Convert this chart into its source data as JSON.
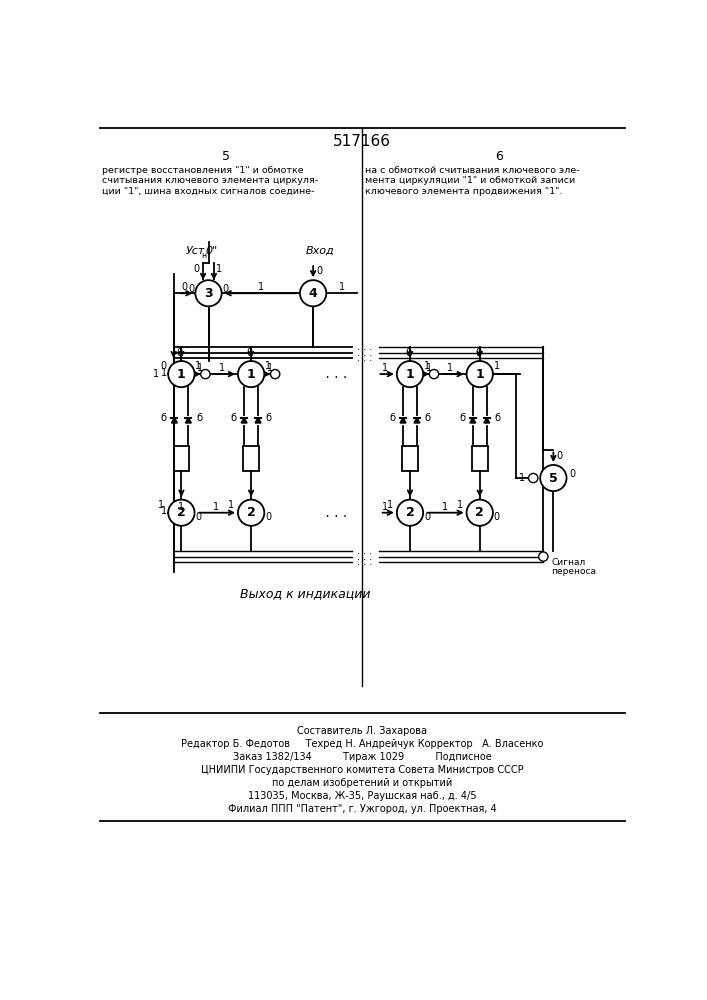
{
  "title": "517166",
  "page_left": "5",
  "page_right": "6",
  "text_left": [
    "регистре восстановления \"1\" и обмотке",
    "считывания ключевого элемента циркуля-",
    "ции \"1\", шина входных сигналов соедине-"
  ],
  "text_right": [
    "на с обмоткой считывания ключевого эле-",
    "мента циркуляции \"1\" и обмоткой записи",
    "ключевого элемента продвижения \"1\"."
  ],
  "footer_lines": [
    "Составитель Л. Захарова",
    "Редактор Б. Федотов     Техред Н. Андрейчук Корректор   А. Власенко",
    "Заказ 1382/134          Тираж 1029          Подписное",
    "ЦНИИПИ Государственного комитета Совета Министров СССР",
    "по делам изобретений и открытий",
    "113035, Москва, Ж-35, Раушская наб., д. 4/5",
    "Филиал ППП \"Патент\", г. Ужгород, ул. Проектная, 4"
  ],
  "bg_color": "#ffffff",
  "line_color": "#000000"
}
